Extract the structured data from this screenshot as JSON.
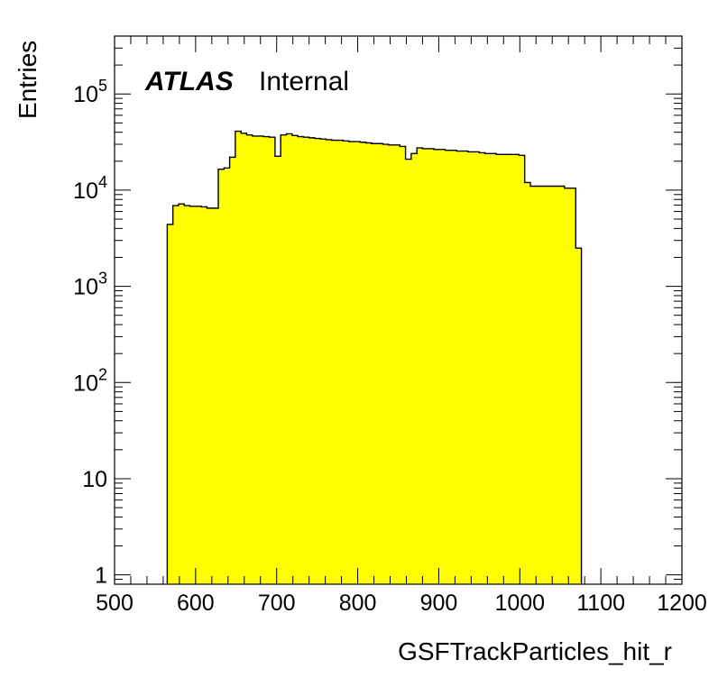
{
  "chart_data": {
    "type": "histogram",
    "xlabel": "GSFTrackParticles_hit_r",
    "ylabel": "Entries",
    "xlim": [
      500,
      1200
    ],
    "ylim": [
      0.8,
      400000
    ],
    "y_scale": "log",
    "x_ticks": [
      "500",
      "600",
      "700",
      "800",
      "900",
      "1000",
      "1100",
      "1200"
    ],
    "y_ticks": [
      {
        "value": 1,
        "base": "1",
        "exp": ""
      },
      {
        "value": 10,
        "base": "10",
        "exp": ""
      },
      {
        "value": 100,
        "base": "10",
        "exp": "2"
      },
      {
        "value": 1000,
        "base": "10",
        "exp": "3"
      },
      {
        "value": 10000,
        "base": "10",
        "exp": "4"
      },
      {
        "value": 100000,
        "base": "10",
        "exp": "5"
      }
    ],
    "bin_width": 7,
    "fill_color": "#ffff00",
    "line_color": "#000000",
    "label": {
      "bold": "ATLAS",
      "plain": "Internal"
    },
    "bins": [
      {
        "x": 565,
        "y": 4400
      },
      {
        "x": 572,
        "y": 6900
      },
      {
        "x": 579,
        "y": 7200
      },
      {
        "x": 586,
        "y": 6900
      },
      {
        "x": 593,
        "y": 6800
      },
      {
        "x": 600,
        "y": 6800
      },
      {
        "x": 607,
        "y": 6700
      },
      {
        "x": 614,
        "y": 6500
      },
      {
        "x": 621,
        "y": 6500
      },
      {
        "x": 628,
        "y": 16500
      },
      {
        "x": 635,
        "y": 17000
      },
      {
        "x": 642,
        "y": 22000
      },
      {
        "x": 649,
        "y": 41000
      },
      {
        "x": 656,
        "y": 39000
      },
      {
        "x": 663,
        "y": 37500
      },
      {
        "x": 670,
        "y": 36500
      },
      {
        "x": 677,
        "y": 36500
      },
      {
        "x": 684,
        "y": 36000
      },
      {
        "x": 691,
        "y": 35500
      },
      {
        "x": 698,
        "y": 22500
      },
      {
        "x": 705,
        "y": 37500
      },
      {
        "x": 712,
        "y": 38500
      },
      {
        "x": 719,
        "y": 37000
      },
      {
        "x": 726,
        "y": 36000
      },
      {
        "x": 733,
        "y": 35500
      },
      {
        "x": 740,
        "y": 35000
      },
      {
        "x": 747,
        "y": 34500
      },
      {
        "x": 754,
        "y": 34000
      },
      {
        "x": 761,
        "y": 33500
      },
      {
        "x": 768,
        "y": 33000
      },
      {
        "x": 775,
        "y": 33000
      },
      {
        "x": 782,
        "y": 32500
      },
      {
        "x": 789,
        "y": 32000
      },
      {
        "x": 796,
        "y": 32000
      },
      {
        "x": 803,
        "y": 31500
      },
      {
        "x": 810,
        "y": 31000
      },
      {
        "x": 817,
        "y": 30500
      },
      {
        "x": 824,
        "y": 30500
      },
      {
        "x": 831,
        "y": 30000
      },
      {
        "x": 838,
        "y": 29500
      },
      {
        "x": 845,
        "y": 29500
      },
      {
        "x": 852,
        "y": 28500
      },
      {
        "x": 859,
        "y": 21000
      },
      {
        "x": 866,
        "y": 24000
      },
      {
        "x": 873,
        "y": 27500
      },
      {
        "x": 880,
        "y": 27000
      },
      {
        "x": 887,
        "y": 27000
      },
      {
        "x": 894,
        "y": 26500
      },
      {
        "x": 901,
        "y": 26500
      },
      {
        "x": 908,
        "y": 26000
      },
      {
        "x": 915,
        "y": 26000
      },
      {
        "x": 922,
        "y": 25500
      },
      {
        "x": 929,
        "y": 25500
      },
      {
        "x": 936,
        "y": 25000
      },
      {
        "x": 943,
        "y": 25000
      },
      {
        "x": 950,
        "y": 24500
      },
      {
        "x": 957,
        "y": 24000
      },
      {
        "x": 964,
        "y": 24000
      },
      {
        "x": 971,
        "y": 23500
      },
      {
        "x": 978,
        "y": 23500
      },
      {
        "x": 985,
        "y": 23500
      },
      {
        "x": 992,
        "y": 23500
      },
      {
        "x": 999,
        "y": 23000
      },
      {
        "x": 1006,
        "y": 12000
      },
      {
        "x": 1013,
        "y": 11000
      },
      {
        "x": 1020,
        "y": 11000
      },
      {
        "x": 1027,
        "y": 11000
      },
      {
        "x": 1034,
        "y": 11000
      },
      {
        "x": 1041,
        "y": 11000
      },
      {
        "x": 1048,
        "y": 11000
      },
      {
        "x": 1055,
        "y": 10500
      },
      {
        "x": 1062,
        "y": 10500
      },
      {
        "x": 1069,
        "y": 2500
      }
    ]
  }
}
